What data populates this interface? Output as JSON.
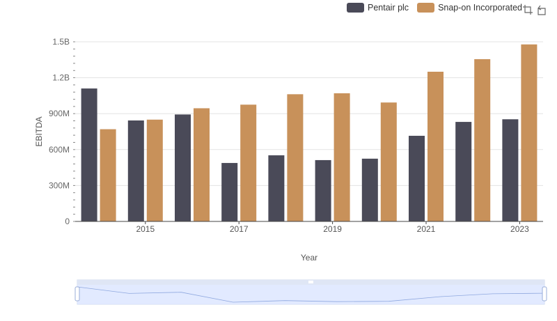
{
  "legend": {
    "items": [
      {
        "label": "Pentair plc",
        "color": "#4a4a58"
      },
      {
        "label": "Snap-on Incorporated",
        "color": "#c8915a"
      }
    ]
  },
  "toolbox": {
    "icons": [
      "zoom-icon",
      "restore-icon"
    ]
  },
  "chart_data": {
    "type": "bar",
    "xlabel": "Year",
    "ylabel": "EBITDA",
    "categories": [
      "2014",
      "2015",
      "2016",
      "2017",
      "2018",
      "2019",
      "2020",
      "2021",
      "2022",
      "2023"
    ],
    "x_tick_labels": [
      "2015",
      "2017",
      "2019",
      "2021",
      "2023"
    ],
    "y_ticks": [
      0,
      300000000,
      600000000,
      900000000,
      1200000000,
      1500000000
    ],
    "y_tick_labels": [
      "0",
      "300M",
      "600M",
      "900M",
      "1.2B",
      "1.5B"
    ],
    "ylim": [
      0,
      1500000000
    ],
    "grid": true,
    "legend_position": "top-right",
    "series": [
      {
        "name": "Pentair plc",
        "color": "#4a4a58",
        "values": [
          1110000000,
          843000000,
          893000000,
          488000000,
          552000000,
          512000000,
          524000000,
          715000000,
          831000000,
          853000000
        ]
      },
      {
        "name": "Snap-on Incorporated",
        "color": "#c8915a",
        "values": [
          770000000,
          850000000,
          945000000,
          975000000,
          1062000000,
          1070000000,
          993000000,
          1250000000,
          1355000000,
          1478000000
        ]
      }
    ]
  }
}
